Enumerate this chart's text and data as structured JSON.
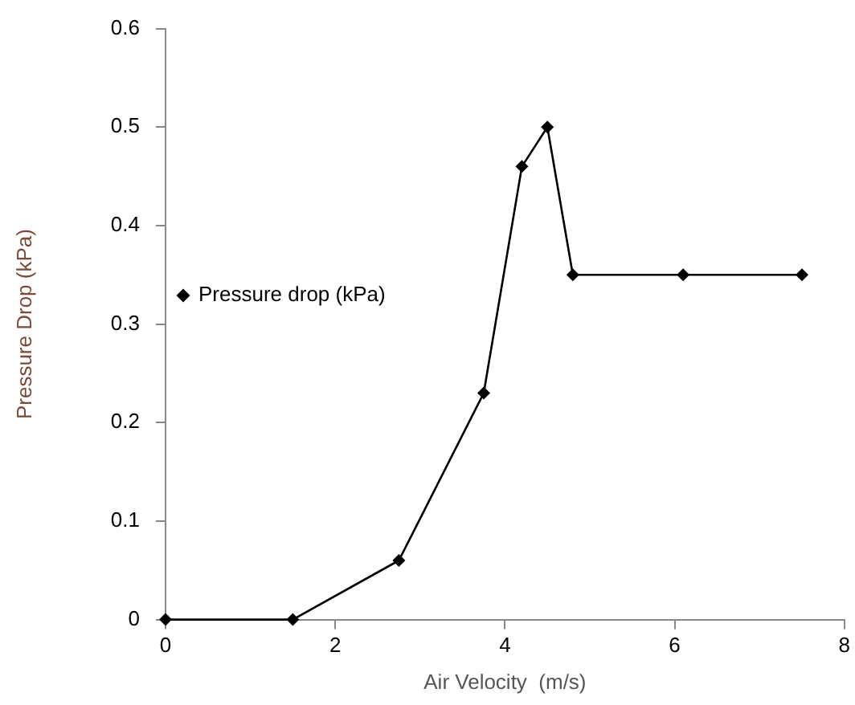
{
  "chart_data": {
    "type": "line",
    "xlabel": "Air Velocity  (m/s)",
    "ylabel": "Pressure Drop (kPa)",
    "x": [
      0,
      1.5,
      2.75,
      3.75,
      4.2,
      4.5,
      4.8,
      6.1,
      7.5
    ],
    "series": [
      {
        "name": "Pressure drop (kPa)",
        "color": "#000000",
        "values": [
          0,
          0,
          0.06,
          0.23,
          0.46,
          0.5,
          0.35,
          0.35,
          0.35
        ]
      }
    ],
    "xlim": [
      0,
      8
    ],
    "xticks": [
      0,
      2,
      4,
      6,
      8
    ],
    "ylim": [
      0,
      0.6
    ],
    "yticks": [
      0,
      0.1,
      0.2,
      0.3,
      0.4,
      0.5,
      0.6
    ],
    "grid": false,
    "legend": "top",
    "marker": "diamond",
    "line_style": "solid"
  }
}
